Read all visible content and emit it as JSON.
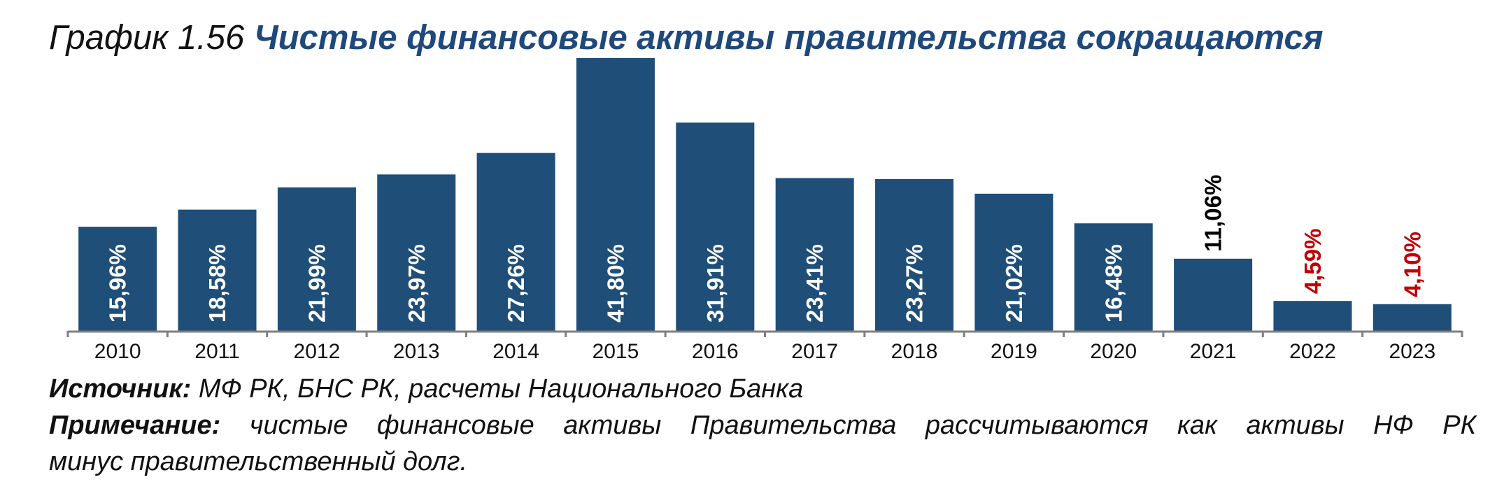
{
  "title": {
    "prefix": "График 1.56",
    "main": "Чистые финансовые активы правительства сокращаются"
  },
  "chart_data": {
    "type": "bar",
    "categories": [
      "2010",
      "2011",
      "2012",
      "2013",
      "2014",
      "2015",
      "2016",
      "2017",
      "2018",
      "2019",
      "2020",
      "2021",
      "2022",
      "2023"
    ],
    "values": [
      15.96,
      18.58,
      21.99,
      23.97,
      27.26,
      41.8,
      31.91,
      23.41,
      23.27,
      21.02,
      16.48,
      11.06,
      4.59,
      4.1
    ],
    "data_labels": [
      "15,96%",
      "18,58%",
      "21,99%",
      "23,97%",
      "27,26%",
      "41,80%",
      "31,91%",
      "23,41%",
      "23,27%",
      "21,02%",
      "16,48%",
      "11,06%",
      "4,59%",
      "4,10%"
    ],
    "label_placement": [
      "inside",
      "inside",
      "inside",
      "inside",
      "inside",
      "inside",
      "inside",
      "inside",
      "inside",
      "inside",
      "inside",
      "above",
      "above",
      "above"
    ],
    "label_colors": [
      "#ffffff",
      "#ffffff",
      "#ffffff",
      "#ffffff",
      "#ffffff",
      "#ffffff",
      "#ffffff",
      "#ffffff",
      "#ffffff",
      "#ffffff",
      "#ffffff",
      "#000000",
      "#c00000",
      "#c00000"
    ],
    "ylim": [
      0,
      41.8
    ],
    "bar_color": "#1f4e79",
    "axis_color": "#7f7f7f",
    "grid": false,
    "legend": "none"
  },
  "footnotes": {
    "source_label": "Источник:",
    "source_text": "МФ РК, БНС РК, расчеты Национального Банка",
    "note_label": "Примечание:",
    "note_line1": "чистые финансовые активы Правительства рассчитываются как активы НФ РК",
    "note_line2": "минус правительственный долг."
  }
}
